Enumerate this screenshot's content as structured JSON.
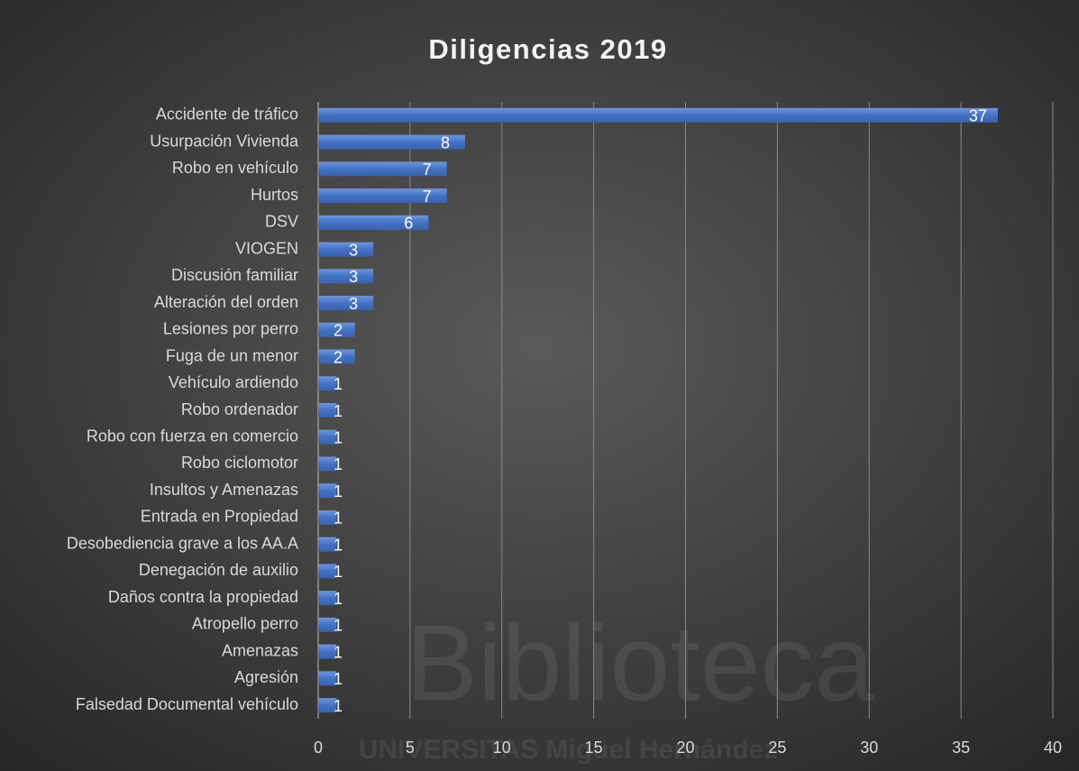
{
  "chart_data": {
    "type": "barh",
    "title": "Diligencias 2019",
    "categories": [
      "Accidente de tráfico",
      "Usurpación Vivienda",
      "Robo en  vehículo",
      "Hurtos",
      "DSV",
      "VIOGEN",
      "Discusión familiar",
      "Alteración del orden",
      "Lesiones por perro",
      "Fuga de un menor",
      "Vehículo ardiendo",
      "Robo ordenador",
      "Robo con fuerza en comercio",
      "Robo ciclomotor",
      "Insultos y Amenazas",
      "Entrada en Propiedad",
      "Desobediencia grave a los AA.A",
      "Denegación de auxilio ",
      "Daños contra la propiedad",
      "Atropello perro",
      "Amenazas",
      "Agresión",
      "Falsedad Documental vehículo"
    ],
    "values": [
      37,
      8,
      7,
      7,
      6,
      3,
      3,
      3,
      2,
      2,
      1,
      1,
      1,
      1,
      1,
      1,
      1,
      1,
      1,
      1,
      1,
      1,
      1
    ],
    "color": "#4472c4",
    "xlim": [
      0,
      40
    ],
    "xticks": [
      0,
      5,
      10,
      15,
      20,
      25,
      30,
      35,
      40
    ],
    "grid": true
  },
  "watermark": {
    "title": "Biblioteca",
    "subtitle": "UNIVERSITAS Miguel Hernández"
  }
}
